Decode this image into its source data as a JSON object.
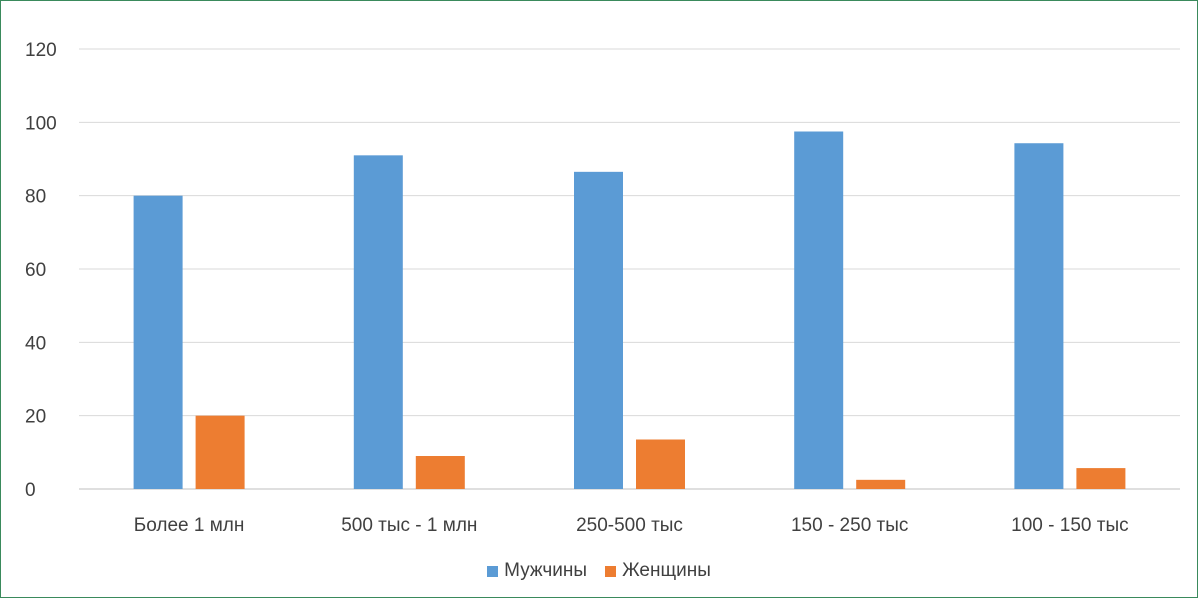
{
  "chart_data": {
    "type": "bar",
    "title": "",
    "xlabel": "",
    "ylabel": "",
    "categories": [
      "Более 1 млн",
      "500 тыс - 1 млн",
      "250-500 тыс",
      "150 - 250 тыс",
      "100 - 150 тыс"
    ],
    "series": [
      {
        "name": "Мужчины",
        "color": "#5b9bd5",
        "values": [
          80,
          91,
          86.5,
          97.5,
          94.3
        ]
      },
      {
        "name": "Женщины",
        "color": "#ed7d31",
        "values": [
          20,
          9,
          13.5,
          2.5,
          5.7
        ]
      }
    ],
    "ylim": [
      0,
      120
    ],
    "yticks": [
      0,
      20,
      40,
      60,
      80,
      100,
      120
    ],
    "grid": true,
    "legend_position": "bottom"
  }
}
